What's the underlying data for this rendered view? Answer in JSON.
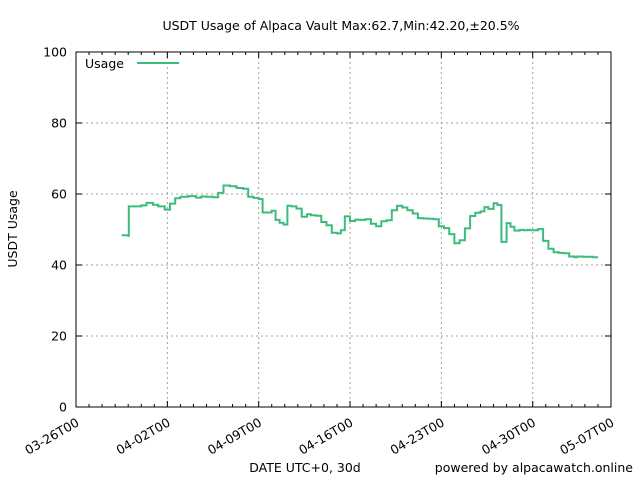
{
  "colors": {
    "series": "#3cbc7c",
    "grid": "#a0a0a0",
    "axis": "#000000"
  },
  "chart_data": {
    "type": "line",
    "title": "USDT Usage of Alpaca Vault Max:62.7,Min:42.20,±20.5%",
    "xlabel": "DATE UTC+0, 30d",
    "ylabel": "USDT Usage",
    "footer": "powered by alpacawatch.online",
    "legend": {
      "position": "top-left",
      "label": "Usage"
    },
    "grid": true,
    "xlim": [
      0,
      41
    ],
    "ylim": [
      0,
      100
    ],
    "x_ticks": [
      {
        "pos": 0,
        "label": "03-26T00"
      },
      {
        "pos": 7,
        "label": "04-02T00"
      },
      {
        "pos": 14,
        "label": "04-09T00"
      },
      {
        "pos": 21,
        "label": "04-16T00"
      },
      {
        "pos": 28,
        "label": "04-23T00"
      },
      {
        "pos": 35,
        "label": "04-30T00"
      },
      {
        "pos": 41,
        "label": "05-07T00"
      }
    ],
    "y_ticks": [
      {
        "pos": 0,
        "label": "0"
      },
      {
        "pos": 20,
        "label": "20"
      },
      {
        "pos": 40,
        "label": "40"
      },
      {
        "pos": 60,
        "label": "60"
      },
      {
        "pos": 80,
        "label": "80"
      },
      {
        "pos": 100,
        "label": "100"
      }
    ],
    "series": [
      {
        "name": "Usage",
        "x": [
          3.5,
          4.0,
          4.05,
          5.0,
          5.4,
          5.9,
          6.3,
          6.8,
          7.2,
          7.6,
          8.0,
          8.6,
          9.2,
          9.6,
          10.0,
          10.5,
          10.9,
          11.3,
          11.8,
          12.3,
          12.8,
          13.2,
          13.6,
          14.0,
          14.3,
          15.0,
          15.3,
          15.6,
          15.9,
          16.2,
          16.5,
          16.9,
          17.3,
          17.7,
          18.0,
          18.4,
          18.8,
          19.2,
          19.6,
          20.0,
          20.3,
          20.6,
          21.0,
          21.4,
          21.8,
          22.2,
          22.6,
          23.0,
          23.4,
          23.8,
          24.2,
          24.6,
          25.0,
          25.4,
          25.8,
          26.2,
          26.6,
          27.0,
          27.4,
          27.8,
          28.2,
          28.6,
          29.0,
          29.4,
          29.8,
          30.2,
          30.6,
          31.0,
          31.3,
          31.6,
          32.0,
          32.3,
          32.6,
          33.0,
          33.3,
          33.6,
          34.0,
          34.3,
          34.6,
          34.8,
          35.0,
          35.4,
          35.8,
          36.2,
          36.6,
          37.0,
          37.4,
          37.8,
          38.2,
          38.4,
          38.8,
          39.2,
          39.6,
          40.0
        ],
        "values": [
          48.4,
          48.2,
          56.5,
          56.8,
          57.5,
          57.0,
          56.5,
          55.6,
          57.3,
          58.8,
          59.2,
          59.4,
          59.0,
          59.3,
          59.2,
          59.1,
          60.3,
          62.4,
          62.2,
          61.7,
          61.5,
          59.2,
          58.9,
          58.6,
          54.8,
          55.3,
          52.7,
          51.9,
          51.4,
          56.7,
          56.5,
          55.9,
          53.6,
          54.3,
          54.0,
          53.9,
          52.1,
          51.2,
          49.1,
          48.9,
          49.8,
          53.7,
          52.4,
          52.8,
          52.7,
          52.9,
          51.6,
          50.9,
          52.3,
          52.6,
          55.4,
          56.7,
          56.2,
          55.4,
          54.5,
          53.2,
          53.1,
          53.0,
          52.9,
          50.9,
          50.4,
          48.7,
          46.1,
          47.0,
          50.3,
          53.8,
          54.7,
          55.1,
          56.3,
          55.8,
          57.4,
          56.9,
          46.5,
          51.8,
          50.8,
          49.7,
          49.9,
          49.8,
          49.9,
          49.8,
          49.8,
          50.1,
          46.8,
          44.6,
          43.6,
          43.4,
          43.3,
          42.4,
          42.2,
          42.4,
          42.3,
          42.3,
          42.2,
          42.2
        ]
      }
    ]
  }
}
